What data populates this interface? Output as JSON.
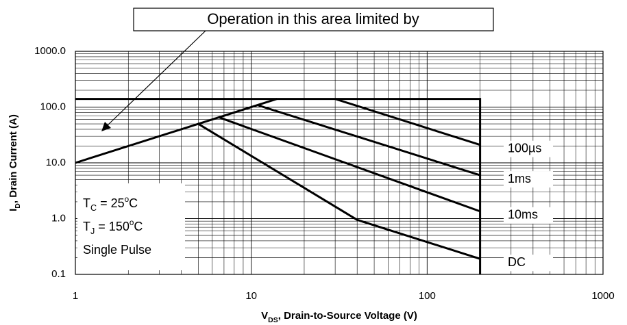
{
  "chart_data": {
    "type": "line",
    "log_x": true,
    "log_y": true,
    "grid": true,
    "minor_grid": true,
    "xlabel": [
      "V",
      "DS",
      ", Drain-to-Source Voltage (V)"
    ],
    "ylabel": [
      "I",
      "D",
      ", Drain Current (A)"
    ],
    "annotation": "Operation in this area limited by",
    "conditions": [
      [
        "T",
        "C",
        " = 25",
        "o",
        "C"
      ],
      [
        "T",
        "J",
        " = 150",
        "o",
        "C"
      ],
      [
        "Single Pulse"
      ]
    ],
    "xlim": [
      1,
      1000
    ],
    "ylim": [
      0.1,
      1000
    ],
    "xticks": [
      1,
      10,
      100,
      1000
    ],
    "yticks": [
      {
        "value": 1000,
        "label": "1000.0"
      },
      {
        "value": 100,
        "label": "100.0"
      },
      {
        "value": 10,
        "label": "10.0"
      },
      {
        "value": 1,
        "label": "1.0"
      },
      0.1
    ],
    "series": [
      {
        "color": "#000000",
        "x": [
          1,
          200,
          200
        ],
        "values": [
          140,
          140,
          0.1
        ]
      },
      {
        "color": "#000000",
        "x": [
          1,
          14
        ],
        "values": [
          10,
          140
        ]
      },
      {
        "name": "100µs",
        "color": "#000000",
        "x": [
          30,
          200
        ],
        "values": [
          140,
          21
        ]
      },
      {
        "name": "1ms",
        "color": "#000000",
        "x": [
          11,
          200
        ],
        "values": [
          107,
          6
        ]
      },
      {
        "name": "10ms",
        "color": "#000000",
        "x": [
          6.5,
          200
        ],
        "values": [
          66,
          1.35
        ]
      },
      {
        "name": "DC",
        "color": "#000000",
        "x": [
          5,
          40,
          200
        ],
        "values": [
          50,
          0.95,
          0.19
        ]
      }
    ]
  }
}
